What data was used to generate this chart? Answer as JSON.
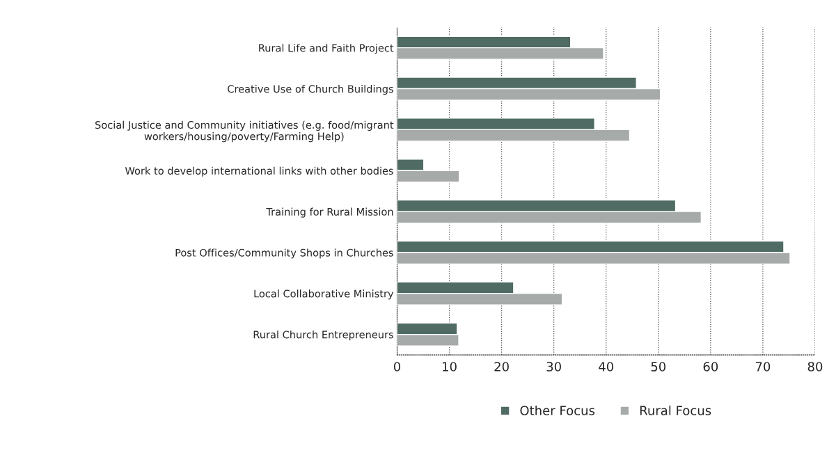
{
  "chart_data": {
    "type": "bar",
    "orientation": "horizontal",
    "categories": [
      "Rural Life and Faith Project",
      "Creative Use of Church Buildings",
      "Social Justice and Community initiatives (e.g. food/migrant\nworkers/housing/poverty/Farming Help)",
      "Work to develop international links with other bodies",
      "Training for Rural Mission",
      "Post Offices/Community Shops in Churches",
      "Local Collaborative Ministry",
      "Rural Church Entrepreneurs"
    ],
    "series": [
      {
        "name": "Other Focus",
        "color": "#4f6b63",
        "values": [
          33.2,
          45.8,
          37.8,
          5.1,
          53.3,
          74.0,
          22.3,
          11.5
        ]
      },
      {
        "name": "Rural Focus",
        "color": "#a6aaa8",
        "values": [
          39.5,
          50.4,
          44.5,
          11.9,
          58.2,
          75.2,
          31.6,
          11.8
        ]
      }
    ],
    "xlim": [
      0,
      80
    ],
    "xticks": [
      0,
      10,
      20,
      30,
      40,
      50,
      60,
      70,
      80
    ],
    "grid": "x",
    "legend": "bottom"
  }
}
